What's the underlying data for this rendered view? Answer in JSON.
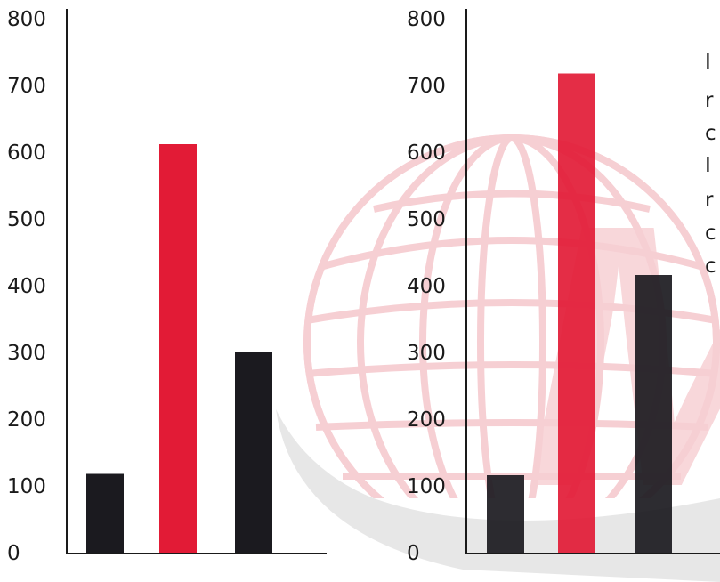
{
  "colors": {
    "bar_dark": "#1b1a1f",
    "bar_red": "#e21b36",
    "watermark_red": "#f0a8b0",
    "watermark_grey": "#cfcfcf",
    "axis": "#1a1a1a"
  },
  "watermark": {
    "icon": "globe-with-swoosh-and-letter-logo",
    "text": "M"
  },
  "cropped_text": {
    "lines": [
      "I",
      "r",
      "c",
      "I",
      "r",
      "c",
      "c"
    ]
  },
  "chart_data": [
    {
      "type": "bar",
      "ylim": [
        0,
        800
      ],
      "yticks": [
        "0",
        "100",
        "200",
        "300",
        "400",
        "500",
        "600",
        "700",
        "800"
      ],
      "categories": [
        "",
        "",
        ""
      ],
      "values": [
        118,
        612,
        300
      ],
      "bar_colors": [
        "#1b1a1f",
        "#e21b36",
        "#1b1a1f"
      ],
      "grid": false
    },
    {
      "type": "bar",
      "ylim": [
        0,
        800
      ],
      "yticks": [
        "0",
        "100",
        "200",
        "300",
        "400",
        "500",
        "600",
        "700",
        "800"
      ],
      "categories": [
        "",
        "",
        ""
      ],
      "values": [
        116,
        718,
        416
      ],
      "bar_colors": [
        "#1b1a1f",
        "#e21b36",
        "#1b1a1f"
      ],
      "grid": false
    }
  ]
}
